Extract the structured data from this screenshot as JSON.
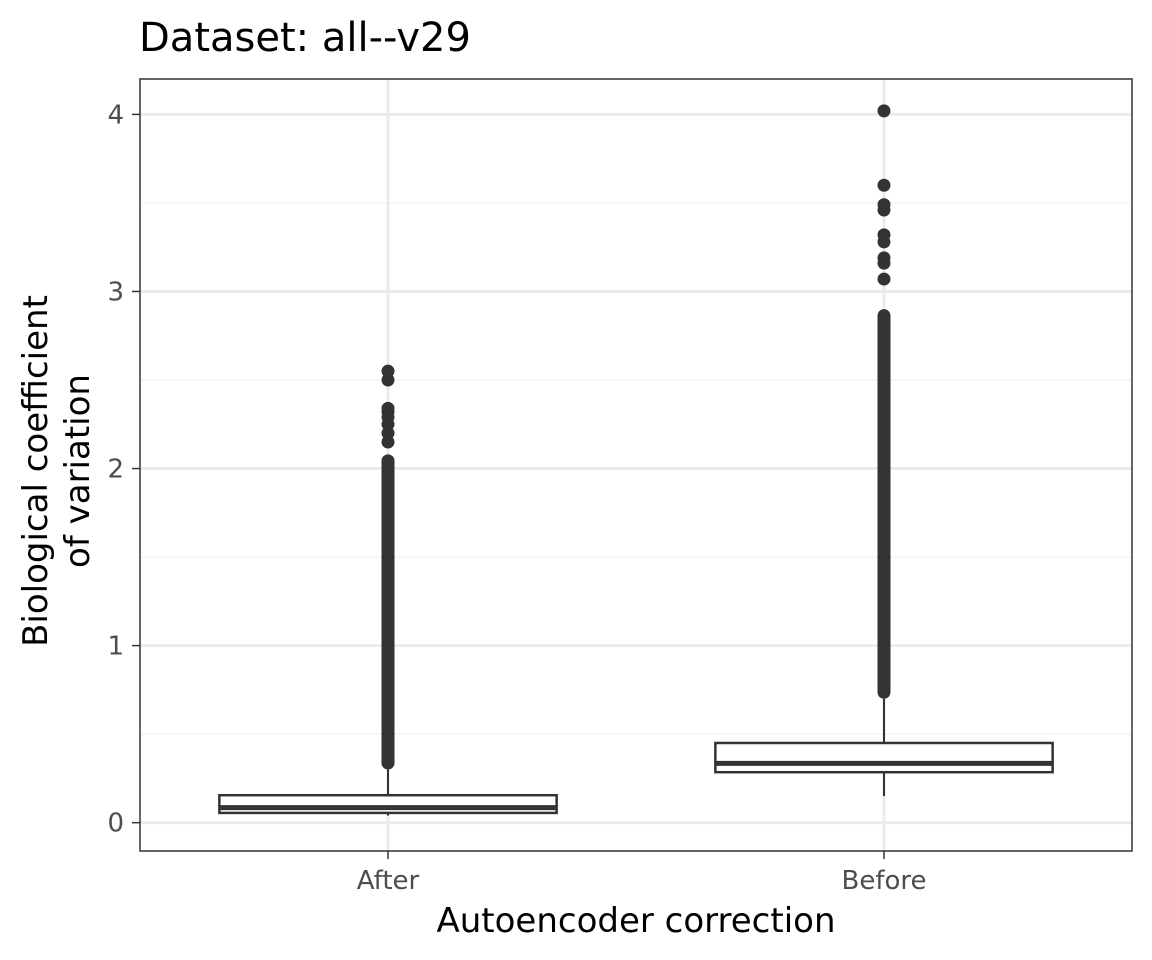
{
  "chart_data": {
    "type": "box",
    "title": "Dataset: all--v29",
    "xlabel": "Autoencoder correction",
    "ylabel_lines": [
      "Biological coefficient",
      "of variation"
    ],
    "categories": [
      "After",
      "Before"
    ],
    "ylim": [
      -0.16,
      4.2
    ],
    "yticks": [
      0,
      1,
      2,
      3,
      4
    ],
    "grid": true,
    "colors": {
      "box_line": "#333333",
      "outlier": "#333333",
      "grid_major": "#ebebeb",
      "grid_minor": "#f3f3f3",
      "panel_border": "#333333",
      "tick_label": "#4d4d4d"
    },
    "boxes": [
      {
        "category": "After",
        "whisker_low": 0.04,
        "q1": 0.055,
        "median": 0.085,
        "q3": 0.155,
        "whisker_high": 0.3,
        "outlier_range": [
          0.3,
          2.08
        ],
        "outliers_sparse": [
          2.15,
          2.2,
          2.25,
          2.29,
          2.32,
          2.34,
          2.5,
          2.55
        ]
      },
      {
        "category": "Before",
        "whisker_low": 0.15,
        "q1": 0.285,
        "median": 0.335,
        "q3": 0.45,
        "whisker_high": 0.7,
        "outlier_range": [
          0.7,
          2.9
        ],
        "outliers_sparse": [
          3.07,
          3.16,
          3.19,
          3.28,
          3.32,
          3.46,
          3.49,
          3.6,
          4.02
        ]
      }
    ]
  }
}
